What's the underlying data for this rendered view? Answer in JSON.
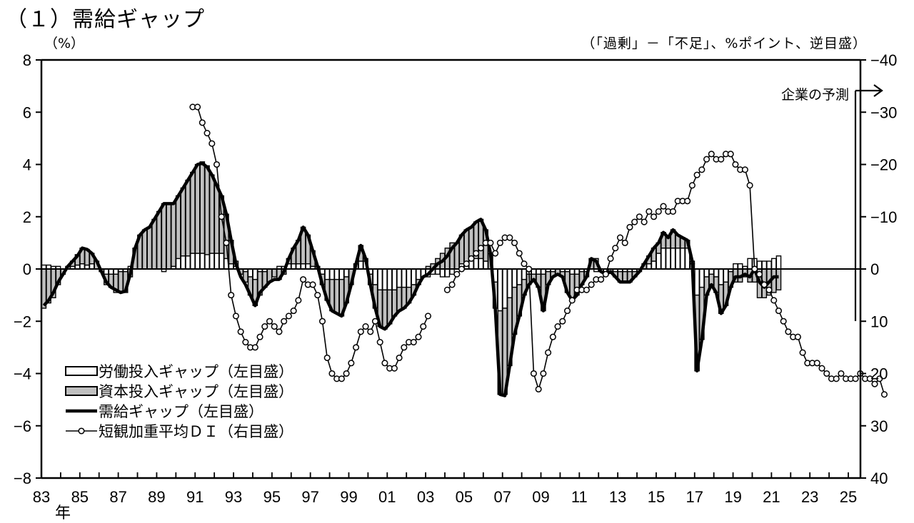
{
  "title": "（１）需給ギャップ",
  "left_unit": "（%）",
  "right_unit": "（「過剰」－「不足」、%ポイント、逆目盛）",
  "forecast_label": "企業の予測",
  "year_suffix": "年",
  "legend": [
    {
      "label": "労働投入ギャップ（左目盛）",
      "type": "bar-white"
    },
    {
      "label": "資本投入ギャップ（左目盛）",
      "type": "bar-gray"
    },
    {
      "label": "需給ギャップ（左目盛）",
      "type": "line-thick"
    },
    {
      "label": "短観加重平均ＤＩ（右目盛）",
      "type": "line-circle"
    }
  ],
  "colors": {
    "capital_bar": "#c0c0c0",
    "labor_bar": "#ffffff",
    "line": "#000000",
    "axis": "#000000"
  },
  "chart_data": {
    "type": "bar+line",
    "title": "（１）需給ギャップ",
    "xlabel": "年",
    "ylabel_left": "（%）",
    "ylabel_right": "（「過剰」－「不足」、%ポイント、逆目盛）",
    "ylim_left": [
      -8,
      8
    ],
    "yticks_left": [
      8,
      6,
      4,
      2,
      0,
      -2,
      -4,
      -6,
      -8
    ],
    "ylim_right_reversed": [
      -40,
      40
    ],
    "yticks_right": [
      -40,
      -30,
      -20,
      -10,
      0,
      10,
      20,
      30,
      40
    ],
    "xtick_labels": [
      "83",
      "85",
      "87",
      "89",
      "91",
      "93",
      "95",
      "97",
      "99",
      "01",
      "03",
      "05",
      "07",
      "09",
      "11",
      "13",
      "15",
      "17",
      "19",
      "21",
      "23",
      "25"
    ],
    "x_start": "1983Q1",
    "frequency": "quarterly",
    "legend_position": "lower-left",
    "grid": false,
    "series": [
      {
        "name": "需給ギャップ（左目盛）",
        "kind": "line-thick",
        "start": "1983Q1",
        "values": [
          -1.4,
          -1.2,
          -0.9,
          -0.5,
          -0.2,
          0.1,
          0.3,
          0.5,
          0.8,
          0.75,
          0.6,
          0.3,
          -0.1,
          -0.5,
          -0.7,
          -0.8,
          -0.9,
          -0.85,
          -0.2,
          0.8,
          1.3,
          1.5,
          1.6,
          1.9,
          2.2,
          2.5,
          2.5,
          2.5,
          2.8,
          3.1,
          3.4,
          3.7,
          4.0,
          4.05,
          3.9,
          3.6,
          3.2,
          2.8,
          2.1,
          1.1,
          0.2,
          -0.3,
          -0.6,
          -1.0,
          -1.4,
          -0.9,
          -0.7,
          -0.5,
          -0.4,
          -0.4,
          -0.1,
          0.4,
          0.8,
          1.1,
          1.6,
          1.3,
          0.7,
          0.1,
          -0.6,
          -1.2,
          -1.6,
          -1.7,
          -1.8,
          -1.3,
          -0.6,
          0.2,
          0.9,
          0.4,
          -0.6,
          -1.5,
          -2.2,
          -2.3,
          -2.1,
          -1.8,
          -1.6,
          -1.5,
          -1.3,
          -1.0,
          -0.6,
          -0.3,
          -0.2,
          0.0,
          0.2,
          0.3,
          0.5,
          0.8,
          1.0,
          1.3,
          1.5,
          1.6,
          1.8,
          1.9,
          1.5,
          0.6,
          -1.5,
          -4.8,
          -4.85,
          -3.7,
          -2.5,
          -1.8,
          -1.0,
          -0.6,
          -0.4,
          -0.7,
          -1.6,
          -0.6,
          -0.3,
          -0.2,
          -0.3,
          -0.9,
          -1.2,
          -1.0,
          -0.6,
          -0.3,
          0.4,
          0.3,
          -0.1,
          -0.2,
          -0.1,
          -0.3,
          -0.5,
          -0.5,
          -0.5,
          -0.3,
          -0.1,
          0.2,
          0.5,
          0.8,
          1.0,
          1.4,
          1.2,
          1.5,
          1.3,
          1.2,
          1.1,
          0.3,
          -3.9,
          -2.7,
          -1.0,
          -0.6,
          -0.9,
          -1.7,
          -1.4,
          -0.7,
          -0.3,
          -0.3,
          -0.2,
          -0.3,
          0.0,
          -0.5,
          -0.7,
          -0.5,
          -0.3,
          -0.3
        ]
      },
      {
        "name": "資本投入ギャップ（左目盛）",
        "kind": "bar-gray",
        "start": "1983Q1",
        "values": [
          -1.5,
          -1.3,
          -1.1,
          -0.6,
          -0.2,
          0.0,
          0.2,
          0.4,
          0.6,
          0.6,
          0.4,
          0.3,
          0.0,
          -0.4,
          -0.5,
          -0.7,
          -0.8,
          -0.8,
          -0.3,
          0.8,
          1.3,
          1.5,
          1.6,
          1.9,
          2.2,
          2.5,
          2.5,
          2.4,
          2.4,
          2.6,
          2.9,
          3.1,
          3.4,
          3.5,
          3.4,
          3.0,
          2.6,
          2.2,
          1.7,
          0.9,
          0.2,
          -0.2,
          -0.4,
          -0.7,
          -1.0,
          -0.9,
          -0.6,
          -0.5,
          -0.3,
          -0.4,
          -0.2,
          0.2,
          0.6,
          0.9,
          1.4,
          1.1,
          0.6,
          0.1,
          -0.4,
          -0.8,
          -1.2,
          -1.3,
          -1.4,
          -1.0,
          -0.6,
          0.2,
          0.6,
          0.1,
          -0.4,
          -0.9,
          -1.4,
          -1.5,
          -1.3,
          -1.0,
          -0.9,
          -0.8,
          -0.6,
          -0.4,
          -0.2,
          0.0,
          0.1,
          0.2,
          0.4,
          0.6,
          0.8,
          1.0,
          1.0,
          1.1,
          1.3,
          1.2,
          1.4,
          1.5,
          1.2,
          0.6,
          -1.0,
          -3.2,
          -3.3,
          -2.6,
          -1.8,
          -1.2,
          -0.6,
          -0.4,
          -0.2,
          -0.5,
          -1.4,
          -0.5,
          -0.2,
          -0.2,
          -0.2,
          -0.8,
          -1.0,
          -0.8,
          -0.5,
          -0.2,
          0.4,
          0.4,
          0.0,
          -0.1,
          -0.1,
          -0.2,
          -0.4,
          -0.4,
          -0.4,
          -0.2,
          0.0,
          0.2,
          0.3,
          0.5,
          0.4,
          0.6,
          0.4,
          0.7,
          0.5,
          0.4,
          0.3,
          0.1,
          -2.9,
          -2.0,
          -0.7,
          -0.4,
          -0.6,
          -1.1,
          -0.9,
          -0.6,
          -0.5,
          -0.5,
          -0.3,
          -0.5,
          -0.5,
          -1.1,
          -1.1,
          -1.0,
          -0.9,
          -0.8
        ]
      },
      {
        "name": "労働投入ギャップ（左目盛）",
        "kind": "bar-white",
        "start": "1983Q1",
        "values": [
          0.15,
          0.15,
          0.1,
          0.1,
          0.0,
          0.1,
          0.1,
          0.15,
          0.2,
          0.15,
          0.2,
          0.0,
          -0.1,
          -0.2,
          -0.2,
          -0.2,
          -0.1,
          -0.1,
          0.1,
          0.0,
          0.0,
          0.0,
          0.0,
          0.0,
          0.0,
          -0.1,
          0.0,
          0.1,
          0.4,
          0.5,
          0.5,
          0.6,
          0.6,
          0.6,
          0.55,
          0.6,
          0.6,
          0.6,
          0.4,
          0.2,
          0.1,
          0.0,
          -0.1,
          -0.3,
          -0.4,
          -0.1,
          -0.1,
          0.0,
          0.0,
          0.1,
          0.1,
          0.2,
          0.2,
          0.2,
          0.2,
          0.2,
          0.1,
          0.0,
          -0.2,
          -0.4,
          -0.4,
          -0.4,
          -0.4,
          -0.3,
          0.0,
          0.0,
          0.3,
          0.3,
          -0.2,
          -0.6,
          -0.8,
          -0.8,
          -0.8,
          -0.8,
          -0.7,
          -0.7,
          -0.7,
          -0.6,
          -0.4,
          -0.3,
          -0.3,
          -0.2,
          -0.2,
          -0.3,
          -0.3,
          -0.2,
          0.0,
          0.2,
          0.2,
          0.4,
          0.4,
          0.4,
          0.3,
          0.0,
          -0.5,
          -1.6,
          -1.5,
          -1.1,
          -0.7,
          -0.6,
          -0.4,
          -0.2,
          -0.2,
          -0.2,
          -0.2,
          -0.1,
          -0.1,
          0.0,
          -0.1,
          -0.1,
          -0.2,
          -0.2,
          -0.1,
          -0.1,
          0.0,
          -0.1,
          -0.1,
          -0.1,
          0.0,
          -0.1,
          -0.1,
          -0.1,
          -0.1,
          -0.1,
          -0.1,
          0.0,
          0.2,
          0.3,
          0.6,
          0.8,
          0.8,
          0.8,
          0.8,
          0.8,
          0.8,
          0.2,
          -1.0,
          -0.7,
          -0.3,
          -0.2,
          -0.3,
          -0.6,
          -0.5,
          -0.1,
          0.2,
          0.2,
          0.1,
          0.4,
          0.4,
          0.3,
          0.3,
          0.3,
          0.4,
          0.5
        ]
      },
      {
        "name": "短観加重平均ＤＩ（右目盛）",
        "kind": "line-circle",
        "segments": [
          {
            "start": "1990Q4",
            "values": [
              -31,
              -31,
              -28,
              -26,
              -24,
              -20,
              -10,
              -5,
              5,
              9,
              12,
              14,
              15,
              15,
              13,
              11,
              10,
              11,
              12,
              10,
              9,
              8,
              6,
              2,
              3,
              3,
              5,
              10,
              17,
              20,
              21,
              21,
              20,
              18,
              15,
              12,
              11,
              12,
              10,
              14,
              18,
              19,
              19,
              17,
              15,
              14,
              14,
              13,
              11,
              9
            ]
          },
          {
            "start": "2004Q1",
            "values": [
              4,
              3,
              1,
              0,
              -1,
              -2,
              -3,
              -4,
              -5,
              -5,
              -3,
              -5,
              -6,
              -6,
              -5,
              -3,
              -1,
              0,
              20,
              23,
              20,
              16,
              13,
              11,
              10,
              8,
              6,
              4,
              4,
              4,
              3,
              2,
              2,
              1,
              -2,
              -4,
              -6,
              -5,
              -8,
              -9,
              -10,
              -9,
              -11,
              -10,
              -11,
              -12,
              -11,
              -11,
              -13,
              -13,
              -13,
              -16,
              -18,
              -19,
              -21,
              -22,
              -21,
              -21,
              -22,
              -22,
              -20,
              -19,
              -19,
              -16,
              0,
              1,
              3,
              4,
              6,
              8,
              10,
              12,
              13,
              13,
              16,
              18,
              18,
              18,
              19,
              20,
              21,
              21,
              20,
              21,
              21,
              21,
              20,
              21,
              21,
              22,
              21,
              24
            ]
          }
        ]
      }
    ],
    "annotations": [
      {
        "text": "企業の予測",
        "position": "top-right",
        "arrow": "right",
        "x_year": 2025.0
      }
    ]
  }
}
